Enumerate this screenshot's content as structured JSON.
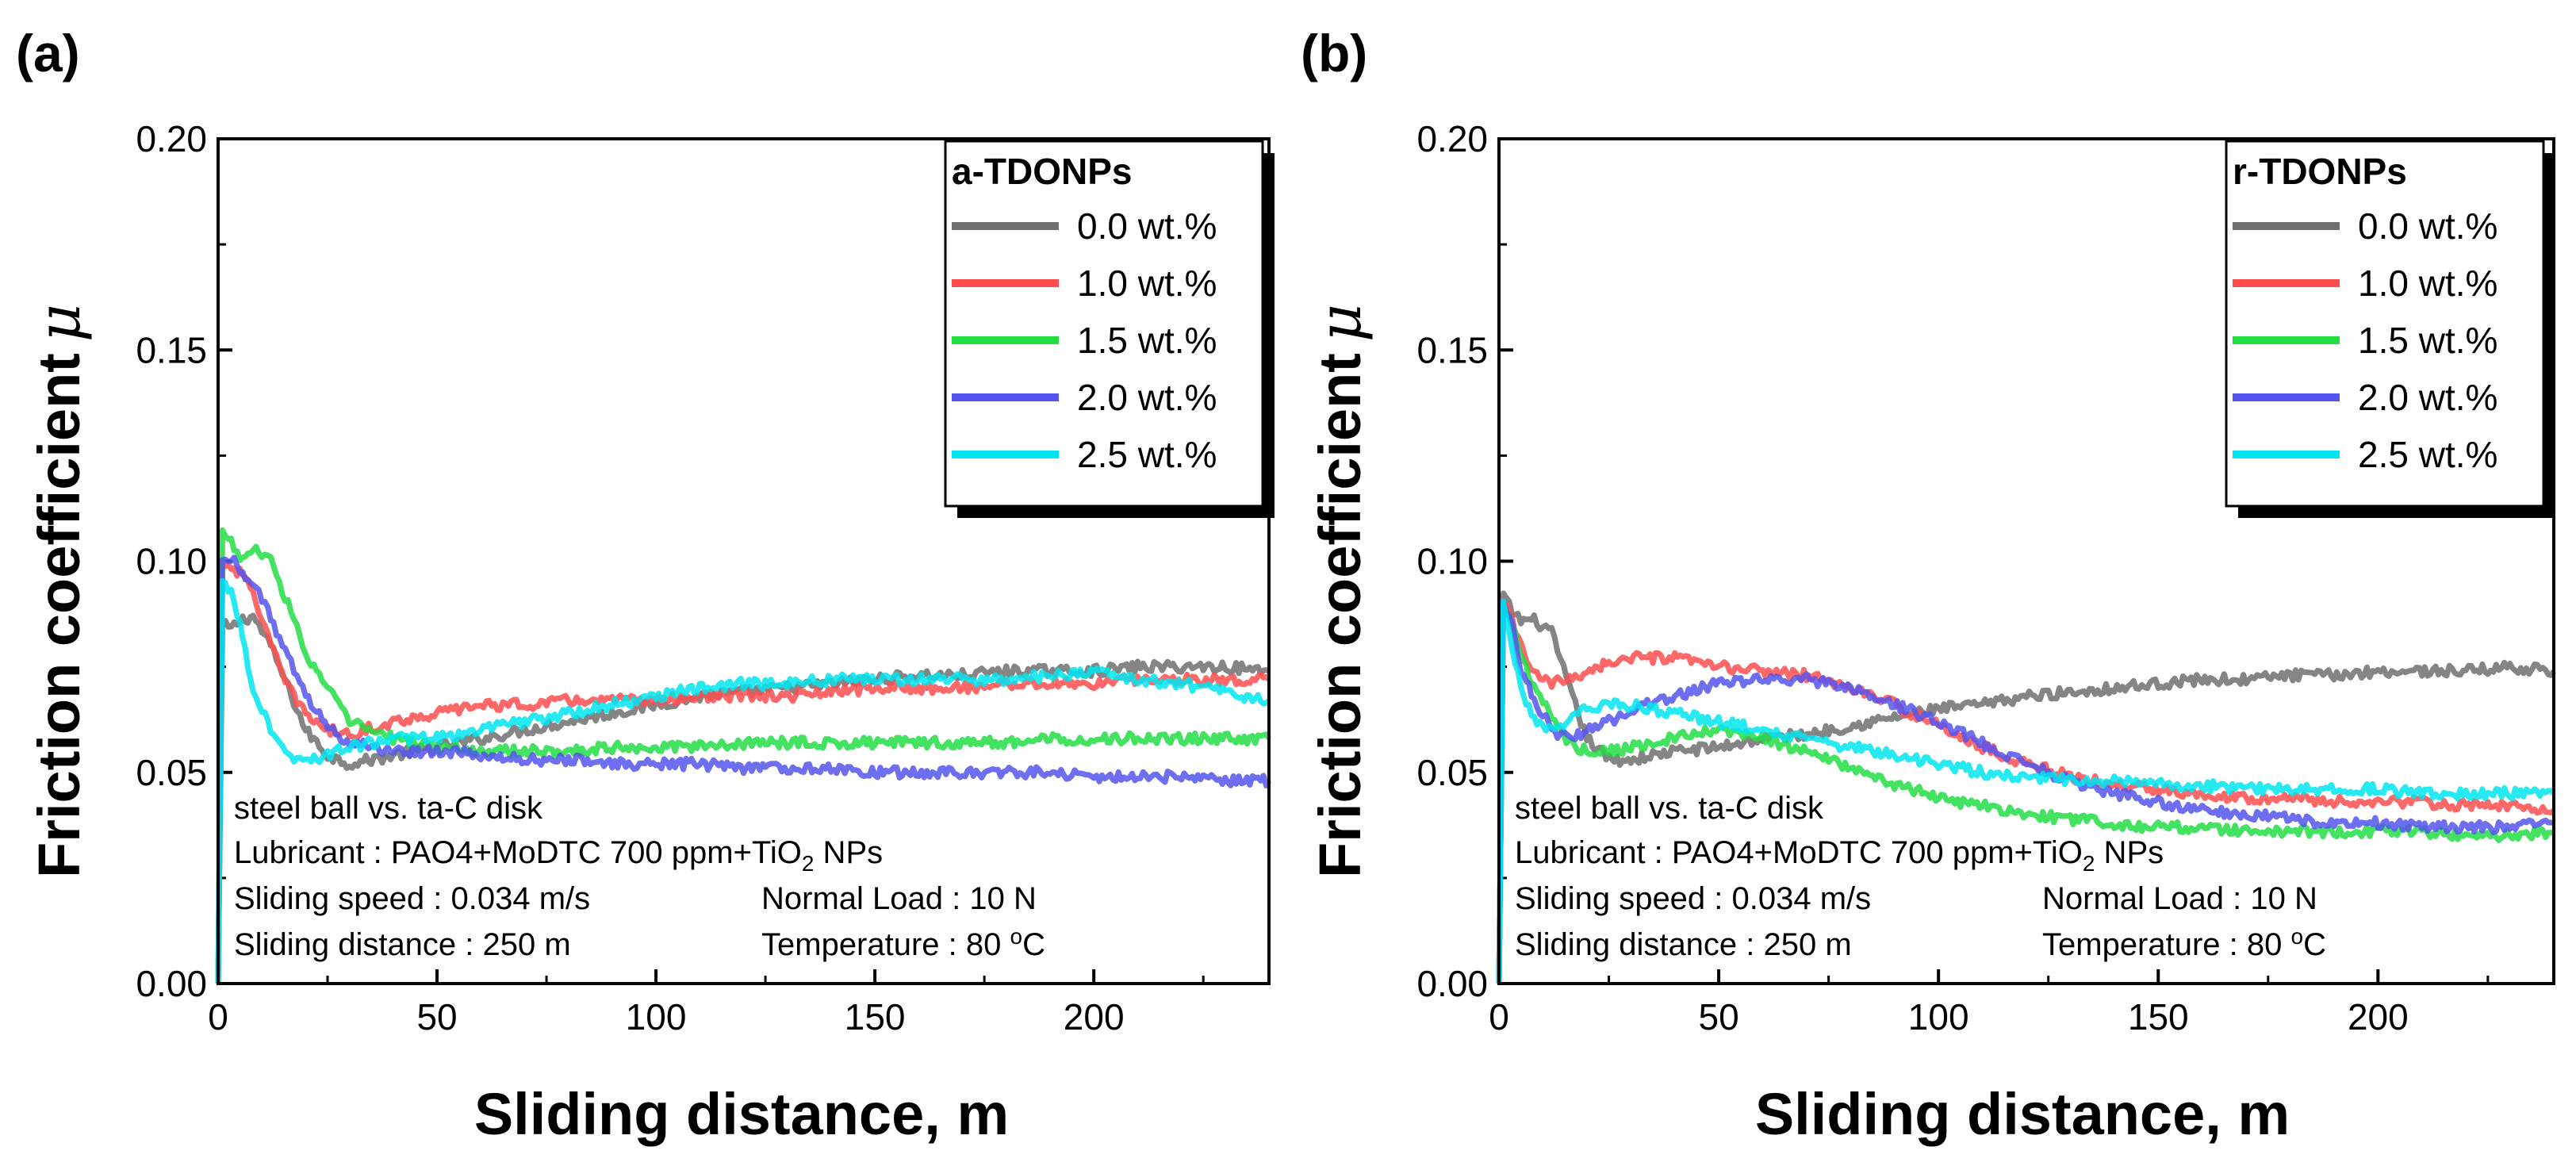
{
  "chart_data": [
    {
      "panel": "(a)",
      "type": "line",
      "xlabel": "Sliding distance, m",
      "ylabel": "Friction coefficient",
      "ylabel_symbol": "μ",
      "xlim": [
        0,
        240
      ],
      "ylim": [
        0,
        0.2
      ],
      "xticks": [
        0,
        50,
        100,
        150,
        200
      ],
      "xtick_labels": [
        "0",
        "50",
        "100",
        "150",
        "200"
      ],
      "yticks": [
        0,
        0.05,
        0.1,
        0.15,
        0.2
      ],
      "ytick_labels": [
        "0.00",
        "0.05",
        "0.10",
        "0.15",
        "0.20"
      ],
      "legend": {
        "title": "a-TDONPs",
        "placement": "top-right"
      },
      "annotations": {
        "line1": "steel ball vs. ta-C disk",
        "line2_prefix": "Lubricant : PAO4+MoDTC 700 ppm+TiO",
        "line2_sub": "2",
        "line2_suffix": " NPs",
        "speed": "Sliding  speed : 0.034 m/s",
        "load": "Normal Load : 10 N",
        "distance": "Sliding  distance : 250 m",
        "temp_prefix": "Temperature : 80 ",
        "temp_sup": "o",
        "temp_suffix": "C"
      },
      "series": [
        {
          "name": "0.0 wt.%",
          "color": "#707070",
          "x": [
            0,
            1,
            3,
            5,
            8,
            12,
            16,
            20,
            25,
            30,
            40,
            50,
            60,
            70,
            80,
            90,
            100,
            110,
            120,
            130,
            140,
            150,
            160,
            170,
            180,
            190,
            200,
            210,
            220,
            230,
            240
          ],
          "y": [
            0.0,
            0.085,
            0.084,
            0.086,
            0.087,
            0.08,
            0.07,
            0.06,
            0.054,
            0.052,
            0.054,
            0.056,
            0.058,
            0.06,
            0.062,
            0.064,
            0.066,
            0.068,
            0.069,
            0.07,
            0.071,
            0.072,
            0.073,
            0.073,
            0.074,
            0.074,
            0.074,
            0.075,
            0.075,
            0.075,
            0.074
          ]
        },
        {
          "name": "1.0 wt.%",
          "color": "#ff4d4d",
          "x": [
            0,
            1,
            3,
            5,
            8,
            12,
            16,
            20,
            25,
            30,
            40,
            50,
            60,
            70,
            80,
            90,
            100,
            110,
            120,
            130,
            140,
            150,
            160,
            170,
            180,
            190,
            200,
            210,
            220,
            230,
            240
          ],
          "y": [
            0.0,
            0.1,
            0.099,
            0.097,
            0.093,
            0.08,
            0.07,
            0.064,
            0.06,
            0.059,
            0.062,
            0.064,
            0.066,
            0.066,
            0.067,
            0.067,
            0.067,
            0.068,
            0.068,
            0.068,
            0.069,
            0.07,
            0.07,
            0.07,
            0.071,
            0.071,
            0.071,
            0.072,
            0.072,
            0.072,
            0.072
          ]
        },
        {
          "name": "1.5 wt.%",
          "color": "#22dd44",
          "x": [
            0,
            1,
            3,
            5,
            8,
            12,
            16,
            20,
            25,
            30,
            40,
            50,
            60,
            70,
            80,
            90,
            100,
            110,
            120,
            130,
            140,
            150,
            160,
            170,
            180,
            190,
            200,
            210,
            220,
            230,
            240
          ],
          "y": [
            0.0,
            0.107,
            0.105,
            0.1,
            0.103,
            0.1,
            0.09,
            0.078,
            0.07,
            0.062,
            0.058,
            0.056,
            0.055,
            0.055,
            0.055,
            0.056,
            0.056,
            0.056,
            0.057,
            0.057,
            0.057,
            0.057,
            0.057,
            0.057,
            0.057,
            0.058,
            0.058,
            0.058,
            0.058,
            0.058,
            0.058
          ]
        },
        {
          "name": "2.0 wt.%",
          "color": "#5555ee",
          "x": [
            0,
            1,
            3,
            5,
            8,
            12,
            16,
            20,
            25,
            30,
            40,
            50,
            60,
            70,
            80,
            90,
            100,
            110,
            120,
            130,
            140,
            150,
            160,
            170,
            180,
            190,
            200,
            210,
            220,
            230,
            240
          ],
          "y": [
            0.0,
            0.1,
            0.101,
            0.098,
            0.095,
            0.087,
            0.077,
            0.068,
            0.061,
            0.057,
            0.055,
            0.055,
            0.054,
            0.053,
            0.053,
            0.052,
            0.052,
            0.052,
            0.051,
            0.051,
            0.051,
            0.05,
            0.05,
            0.05,
            0.05,
            0.05,
            0.049,
            0.049,
            0.049,
            0.048,
            0.048
          ]
        },
        {
          "name": "2.5 wt.%",
          "color": "#00e5f0",
          "x": [
            0,
            1,
            3,
            5,
            8,
            12,
            16,
            20,
            25,
            30,
            40,
            50,
            60,
            70,
            80,
            90,
            100,
            110,
            120,
            130,
            140,
            150,
            160,
            170,
            180,
            190,
            200,
            210,
            220,
            230,
            240
          ],
          "y": [
            0.0,
            0.095,
            0.093,
            0.085,
            0.07,
            0.06,
            0.054,
            0.053,
            0.054,
            0.056,
            0.058,
            0.058,
            0.06,
            0.062,
            0.064,
            0.066,
            0.068,
            0.07,
            0.071,
            0.071,
            0.072,
            0.072,
            0.072,
            0.072,
            0.072,
            0.073,
            0.074,
            0.072,
            0.071,
            0.069,
            0.067
          ]
        }
      ]
    },
    {
      "panel": "(b)",
      "type": "line",
      "xlabel": "Sliding distance, m",
      "ylabel": "Friction coefficient",
      "ylabel_symbol": "μ",
      "xlim": [
        0,
        240
      ],
      "ylim": [
        0,
        0.2
      ],
      "xticks": [
        0,
        50,
        100,
        150,
        200
      ],
      "xtick_labels": [
        "0",
        "50",
        "100",
        "150",
        "200"
      ],
      "yticks": [
        0,
        0.05,
        0.1,
        0.15,
        0.2
      ],
      "ytick_labels": [
        "0.00",
        "0.05",
        "0.10",
        "0.15",
        "0.20"
      ],
      "legend": {
        "title": "r-TDONPs",
        "placement": "top-right"
      },
      "annotations": {
        "line1": "steel ball vs. ta-C disk",
        "line2_prefix": "Lubricant : PAO4+MoDTC 700 ppm+TiO",
        "line2_sub": "2",
        "line2_suffix": " NPs",
        "speed": "Sliding  speed : 0.034 m/s",
        "load": "Normal Load : 10 N",
        "distance": "Sliding  distance : 250 m",
        "temp_prefix": "Temperature : 80 ",
        "temp_sup": "o",
        "temp_suffix": "C"
      },
      "series": [
        {
          "name": "0.0 wt.%",
          "color": "#707070",
          "x": [
            0,
            1,
            3,
            5,
            8,
            12,
            16,
            20,
            25,
            30,
            40,
            50,
            60,
            70,
            80,
            90,
            100,
            110,
            120,
            130,
            140,
            150,
            160,
            170,
            180,
            190,
            200,
            210,
            220,
            230,
            240
          ],
          "y": [
            0.0,
            0.092,
            0.088,
            0.086,
            0.086,
            0.083,
            0.07,
            0.058,
            0.053,
            0.053,
            0.055,
            0.056,
            0.058,
            0.059,
            0.061,
            0.063,
            0.065,
            0.066,
            0.068,
            0.069,
            0.07,
            0.071,
            0.072,
            0.072,
            0.073,
            0.073,
            0.074,
            0.074,
            0.074,
            0.075,
            0.074
          ]
        },
        {
          "name": "1.0 wt.%",
          "color": "#ff4d4d",
          "x": [
            0,
            1,
            3,
            5,
            8,
            12,
            16,
            20,
            25,
            30,
            40,
            50,
            60,
            70,
            80,
            90,
            100,
            110,
            120,
            130,
            140,
            150,
            160,
            170,
            180,
            190,
            200,
            210,
            220,
            230,
            240
          ],
          "y": [
            0.0,
            0.09,
            0.086,
            0.08,
            0.073,
            0.071,
            0.072,
            0.074,
            0.076,
            0.077,
            0.077,
            0.075,
            0.074,
            0.073,
            0.07,
            0.066,
            0.061,
            0.056,
            0.052,
            0.049,
            0.047,
            0.046,
            0.045,
            0.044,
            0.044,
            0.043,
            0.043,
            0.043,
            0.042,
            0.042,
            0.041
          ]
        },
        {
          "name": "1.5 wt.%",
          "color": "#22dd44",
          "x": [
            0,
            1,
            3,
            5,
            8,
            12,
            16,
            20,
            25,
            30,
            40,
            50,
            60,
            70,
            80,
            90,
            100,
            110,
            120,
            130,
            140,
            150,
            160,
            170,
            180,
            190,
            200,
            210,
            220,
            230,
            240
          ],
          "y": [
            0.0,
            0.09,
            0.085,
            0.078,
            0.07,
            0.063,
            0.057,
            0.055,
            0.055,
            0.056,
            0.058,
            0.06,
            0.058,
            0.055,
            0.051,
            0.047,
            0.044,
            0.042,
            0.04,
            0.039,
            0.038,
            0.037,
            0.037,
            0.036,
            0.036,
            0.036,
            0.036,
            0.036,
            0.035,
            0.035,
            0.036
          ]
        },
        {
          "name": "2.0 wt.%",
          "color": "#5555ee",
          "x": [
            0,
            1,
            3,
            5,
            8,
            12,
            16,
            20,
            25,
            30,
            40,
            50,
            60,
            70,
            80,
            90,
            100,
            110,
            120,
            130,
            140,
            150,
            160,
            170,
            180,
            190,
            200,
            210,
            220,
            230,
            240
          ],
          "y": [
            0.0,
            0.09,
            0.085,
            0.075,
            0.067,
            0.06,
            0.058,
            0.06,
            0.062,
            0.065,
            0.068,
            0.071,
            0.072,
            0.072,
            0.07,
            0.066,
            0.062,
            0.057,
            0.052,
            0.048,
            0.045,
            0.043,
            0.041,
            0.04,
            0.039,
            0.038,
            0.038,
            0.037,
            0.037,
            0.037,
            0.038
          ]
        },
        {
          "name": "2.5 wt.%",
          "color": "#00e5f0",
          "x": [
            0,
            1,
            3,
            5,
            8,
            12,
            16,
            20,
            25,
            30,
            40,
            50,
            60,
            70,
            80,
            90,
            100,
            110,
            120,
            130,
            140,
            150,
            160,
            170,
            180,
            190,
            200,
            210,
            220,
            230,
            240
          ],
          "y": [
            0.0,
            0.09,
            0.08,
            0.07,
            0.063,
            0.06,
            0.062,
            0.065,
            0.066,
            0.066,
            0.064,
            0.062,
            0.06,
            0.058,
            0.056,
            0.054,
            0.052,
            0.05,
            0.049,
            0.048,
            0.048,
            0.047,
            0.047,
            0.046,
            0.046,
            0.046,
            0.046,
            0.045,
            0.045,
            0.045,
            0.045
          ]
        }
      ]
    }
  ]
}
